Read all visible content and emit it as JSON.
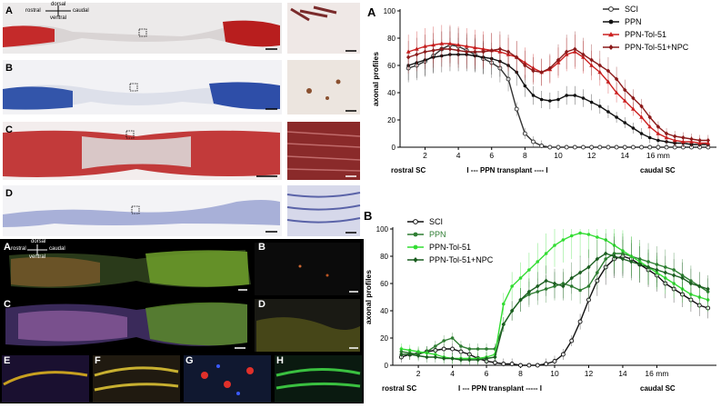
{
  "histology": {
    "panel_letters": [
      "A",
      "B",
      "C",
      "D"
    ],
    "orientation": {
      "dorsal": "dorsal",
      "ventral": "ventral",
      "rostral": "rostral",
      "caudal": "caudal"
    }
  },
  "fluorescence": {
    "panel_letters": [
      "A",
      "B",
      "C",
      "D",
      "E",
      "F",
      "G",
      "H"
    ],
    "orientation": {
      "dorsal": "dorsal",
      "ventral": "ventral",
      "rostral": "rostral",
      "caudal": "caudal"
    }
  },
  "chart_data": [
    {
      "type": "line",
      "panel_letter": "A",
      "ylabel": "axonal profiles",
      "ylim": [
        0,
        100
      ],
      "yticks": [
        0,
        20,
        40,
        60,
        80,
        100
      ],
      "xlim": [
        0.5,
        19.5
      ],
      "xtick_labels": [
        "2",
        "4",
        "6",
        "8",
        "10",
        "12",
        "14",
        "16 mm"
      ],
      "xtick_values": [
        2,
        4,
        6,
        8,
        10,
        12,
        14,
        16
      ],
      "bottom_labels": {
        "left": "rostral SC",
        "center": "I --- PPN transplant ---- I",
        "right": "caudal SC"
      },
      "x": [
        1,
        1.5,
        2,
        2.5,
        3,
        3.5,
        4,
        4.5,
        5,
        5.5,
        6,
        6.5,
        7,
        7.5,
        8,
        8.5,
        9,
        9.5,
        10,
        10.5,
        11,
        11.5,
        12,
        12.5,
        13,
        13.5,
        14,
        14.5,
        15,
        15.5,
        16,
        16.5,
        17,
        17.5,
        18,
        18.5,
        19
      ],
      "series": [
        {
          "name": "SCI",
          "color": "#333333",
          "marker": "open-circle",
          "values": [
            58,
            60,
            63,
            67,
            72,
            75,
            74,
            71,
            68,
            65,
            62,
            58,
            50,
            28,
            10,
            4,
            1,
            0,
            0,
            0,
            0,
            0,
            0,
            0,
            0,
            0,
            0,
            0,
            0,
            0,
            0,
            0,
            0,
            0,
            0,
            0,
            0
          ]
        },
        {
          "name": "PPN",
          "color": "#111111",
          "marker": "filled-circle",
          "values": [
            60,
            62,
            64,
            66,
            67,
            68,
            68,
            68,
            67,
            66,
            65,
            63,
            60,
            55,
            45,
            38,
            35,
            34,
            35,
            38,
            38,
            36,
            33,
            30,
            26,
            22,
            18,
            14,
            10,
            7,
            5,
            4,
            3,
            3,
            2,
            2,
            2
          ]
        },
        {
          "name": "PPN-Tol-51",
          "color": "#cc2020",
          "marker": "triangle",
          "values": [
            70,
            72,
            74,
            75,
            76,
            76,
            75,
            74,
            73,
            72,
            71,
            70,
            68,
            66,
            62,
            58,
            55,
            57,
            62,
            68,
            70,
            66,
            60,
            55,
            48,
            40,
            34,
            28,
            22,
            15,
            10,
            7,
            5,
            4,
            4,
            3,
            3
          ]
        },
        {
          "name": "PPN-Tol-51+NPC",
          "color": "#8b1a1a",
          "marker": "diamond",
          "values": [
            66,
            68,
            70,
            71,
            72,
            72,
            71,
            70,
            70,
            70,
            71,
            72,
            70,
            66,
            60,
            56,
            55,
            58,
            64,
            70,
            72,
            68,
            64,
            60,
            56,
            50,
            42,
            36,
            30,
            22,
            15,
            10,
            8,
            7,
            6,
            5,
            5
          ]
        }
      ]
    },
    {
      "type": "line",
      "panel_letter": "B",
      "ylabel": "axonal profiles",
      "ylim": [
        0,
        100
      ],
      "yticks": [
        0,
        20,
        40,
        60,
        80,
        100
      ],
      "xlim": [
        0.5,
        19.5
      ],
      "xtick_labels": [
        "2",
        "4",
        "6",
        "8",
        "10",
        "12",
        "14",
        "16 mm"
      ],
      "xtick_values": [
        2,
        4,
        6,
        8,
        10,
        12,
        14,
        16
      ],
      "bottom_labels": {
        "left": "rostral SC",
        "center": "I --- PPN transplant ----- I",
        "right": "caudal SC"
      },
      "x": [
        1,
        1.5,
        2,
        2.5,
        3,
        3.5,
        4,
        4.5,
        5,
        5.5,
        6,
        6.5,
        7,
        7.5,
        8,
        8.5,
        9,
        9.5,
        10,
        10.5,
        11,
        11.5,
        12,
        12.5,
        13,
        13.5,
        14,
        14.5,
        15,
        15.5,
        16,
        16.5,
        17,
        17.5,
        18,
        18.5,
        19
      ],
      "series": [
        {
          "name": "SCI",
          "color": "#111111",
          "marker": "open-circle",
          "values": [
            6,
            8,
            9,
            10,
            11,
            12,
            12,
            10,
            8,
            5,
            3,
            2,
            1,
            1,
            0,
            0,
            0,
            1,
            3,
            8,
            18,
            32,
            48,
            62,
            72,
            78,
            80,
            78,
            74,
            70,
            66,
            60,
            56,
            52,
            48,
            44,
            42
          ]
        },
        {
          "name": "PPN",
          "color": "#2e7d32",
          "marker": "filled-circle",
          "values": [
            10,
            9,
            8,
            10,
            14,
            18,
            20,
            14,
            12,
            12,
            12,
            12,
            30,
            40,
            48,
            52,
            54,
            56,
            58,
            60,
            58,
            55,
            58,
            68,
            78,
            82,
            82,
            80,
            78,
            76,
            74,
            72,
            70,
            66,
            62,
            58,
            54
          ]
        },
        {
          "name": "PPN-Tol-51",
          "color": "#33dd33",
          "marker": "filled-circle",
          "values": [
            12,
            11,
            10,
            9,
            8,
            6,
            5,
            5,
            5,
            5,
            6,
            8,
            45,
            58,
            64,
            70,
            76,
            82,
            88,
            92,
            95,
            97,
            96,
            94,
            92,
            88,
            84,
            80,
            76,
            72,
            68,
            64,
            60,
            56,
            52,
            50,
            48
          ]
        },
        {
          "name": "PPN-Tol-51+NPC",
          "color": "#1b5e20",
          "marker": "diamond",
          "values": [
            8,
            8,
            7,
            6,
            6,
            5,
            5,
            4,
            4,
            4,
            5,
            6,
            30,
            40,
            48,
            54,
            58,
            62,
            60,
            58,
            64,
            68,
            72,
            78,
            82,
            80,
            78,
            76,
            74,
            72,
            70,
            68,
            66,
            64,
            60,
            58,
            56
          ]
        }
      ]
    }
  ]
}
